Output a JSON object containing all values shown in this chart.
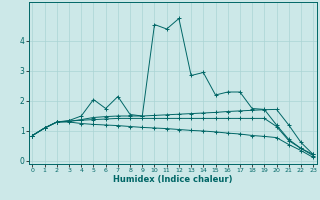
{
  "title": "",
  "xlabel": "Humidex (Indice chaleur)",
  "bg_color": "#cce8e8",
  "grid_color": "#aad4d4",
  "line_color": "#006666",
  "x_values": [
    0,
    1,
    2,
    3,
    4,
    5,
    6,
    7,
    8,
    9,
    10,
    11,
    12,
    13,
    14,
    15,
    16,
    17,
    18,
    19,
    20,
    21,
    22,
    23
  ],
  "series": [
    [
      0.85,
      1.1,
      1.3,
      1.35,
      1.5,
      2.05,
      1.75,
      2.15,
      1.55,
      1.5,
      4.55,
      4.4,
      4.75,
      2.85,
      2.95,
      2.2,
      2.3,
      2.3,
      1.75,
      1.72,
      1.2,
      0.72,
      0.42,
      0.22
    ],
    [
      0.85,
      1.1,
      1.3,
      1.32,
      1.38,
      1.45,
      1.48,
      1.5,
      1.5,
      1.5,
      1.52,
      1.54,
      1.56,
      1.58,
      1.6,
      1.62,
      1.65,
      1.67,
      1.69,
      1.71,
      1.72,
      1.2,
      0.62,
      0.22
    ],
    [
      0.85,
      1.1,
      1.3,
      1.33,
      1.36,
      1.38,
      1.4,
      1.42,
      1.42,
      1.42,
      1.42,
      1.42,
      1.42,
      1.42,
      1.42,
      1.42,
      1.42,
      1.42,
      1.42,
      1.42,
      1.15,
      0.68,
      0.42,
      0.18
    ],
    [
      0.85,
      1.1,
      1.3,
      1.3,
      1.25,
      1.22,
      1.2,
      1.18,
      1.15,
      1.12,
      1.1,
      1.08,
      1.05,
      1.02,
      1.0,
      0.97,
      0.93,
      0.9,
      0.85,
      0.82,
      0.78,
      0.55,
      0.35,
      0.12
    ]
  ],
  "ylim": [
    -0.1,
    5.3
  ],
  "xlim": [
    -0.3,
    23.3
  ],
  "yticks": [
    0,
    1,
    2,
    3,
    4
  ],
  "xticks": [
    0,
    1,
    2,
    3,
    4,
    5,
    6,
    7,
    8,
    9,
    10,
    11,
    12,
    13,
    14,
    15,
    16,
    17,
    18,
    19,
    20,
    21,
    22,
    23
  ]
}
